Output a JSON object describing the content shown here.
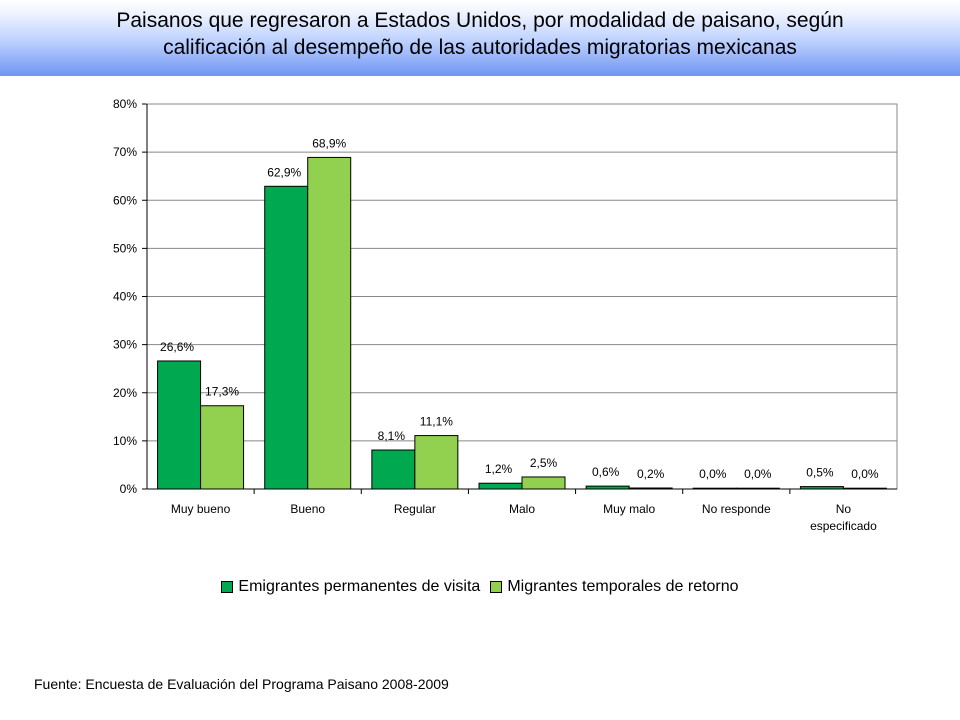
{
  "title_lines": [
    "Paisanos que regresaron a Estados Unidos, por modalidad de paisano, según",
    "calificación al desempeño de las autoridades migratorias mexicanas"
  ],
  "source": "Fuente: Encuesta de Evaluación del Programa Paisano 2008-2009",
  "colors": {
    "series1": "#00a84f",
    "series2": "#92d050",
    "header_bottom": "#6f95f2"
  },
  "chart_data": {
    "type": "bar",
    "categories": [
      "Muy bueno",
      "Bueno",
      "Regular",
      "Malo",
      "Muy malo",
      "No responde",
      "No especificado"
    ],
    "category_lines": [
      [
        "Muy bueno"
      ],
      [
        "Bueno"
      ],
      [
        "Regular"
      ],
      [
        "Malo"
      ],
      [
        "Muy malo"
      ],
      [
        "No responde"
      ],
      [
        "No",
        "especificado"
      ]
    ],
    "series": [
      {
        "name": "Emigrantes permanentes de visita",
        "values": [
          26.6,
          62.9,
          8.1,
          1.2,
          0.6,
          0.0,
          0.5
        ],
        "labels": [
          "26,6%",
          "62,9%",
          "8,1%",
          "1,2%",
          "0,6%",
          "0,0%",
          "0,5%"
        ]
      },
      {
        "name": "Migrantes temporales de retorno",
        "values": [
          17.3,
          68.9,
          11.1,
          2.5,
          0.2,
          0.0,
          0.0
        ],
        "labels": [
          "17,3%",
          "68,9%",
          "11,1%",
          "2,5%",
          "0,2%",
          "0,0%",
          "0,0%"
        ]
      }
    ],
    "yticks": [
      "0%",
      "10%",
      "20%",
      "30%",
      "40%",
      "50%",
      "60%",
      "70%",
      "80%"
    ],
    "ylim": [
      0,
      80
    ],
    "grid": true,
    "legend_position": "bottom"
  }
}
